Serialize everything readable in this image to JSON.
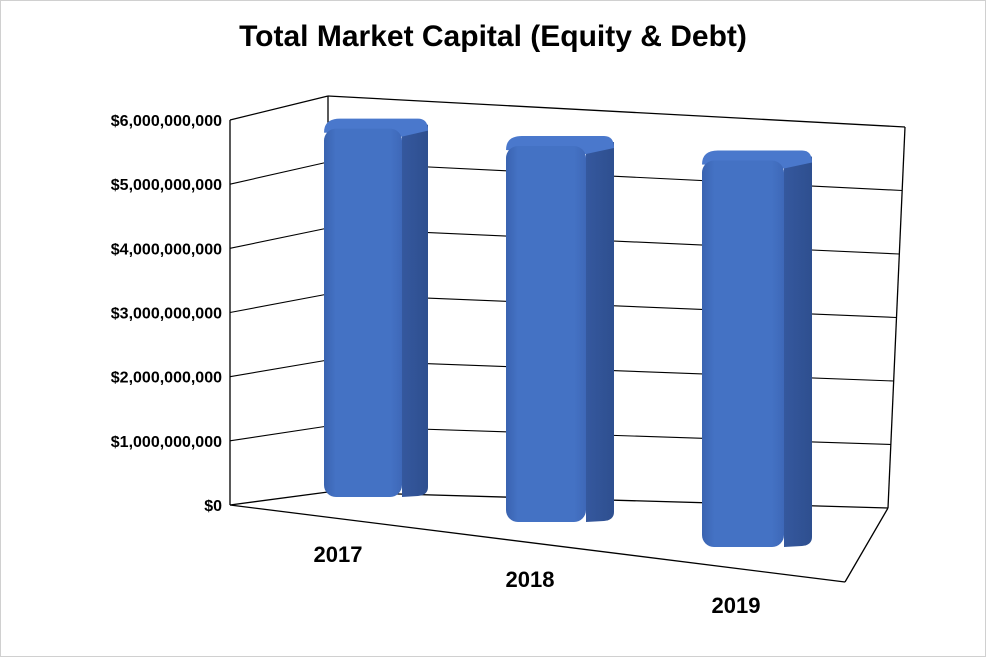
{
  "chart_data": {
    "type": "bar",
    "title": "Total Market Capital (Equity & Debt)",
    "xlabel": "",
    "ylabel": "",
    "categories": [
      "2017",
      "2018",
      "2019"
    ],
    "series": [
      {
        "values": [
          5200000000,
          5150000000,
          5130000000
        ]
      }
    ],
    "ylim": [
      0,
      6000000000
    ],
    "yticks": [
      "$0",
      "$1,000,000,000",
      "$2,000,000,000",
      "$3,000,000,000",
      "$4,000,000,000",
      "$5,000,000,000",
      "$6,000,000,000"
    ],
    "grid": true,
    "legend": "none",
    "bar_color": "#4472C4",
    "bar_shadow_color": "#2E4F8F"
  }
}
